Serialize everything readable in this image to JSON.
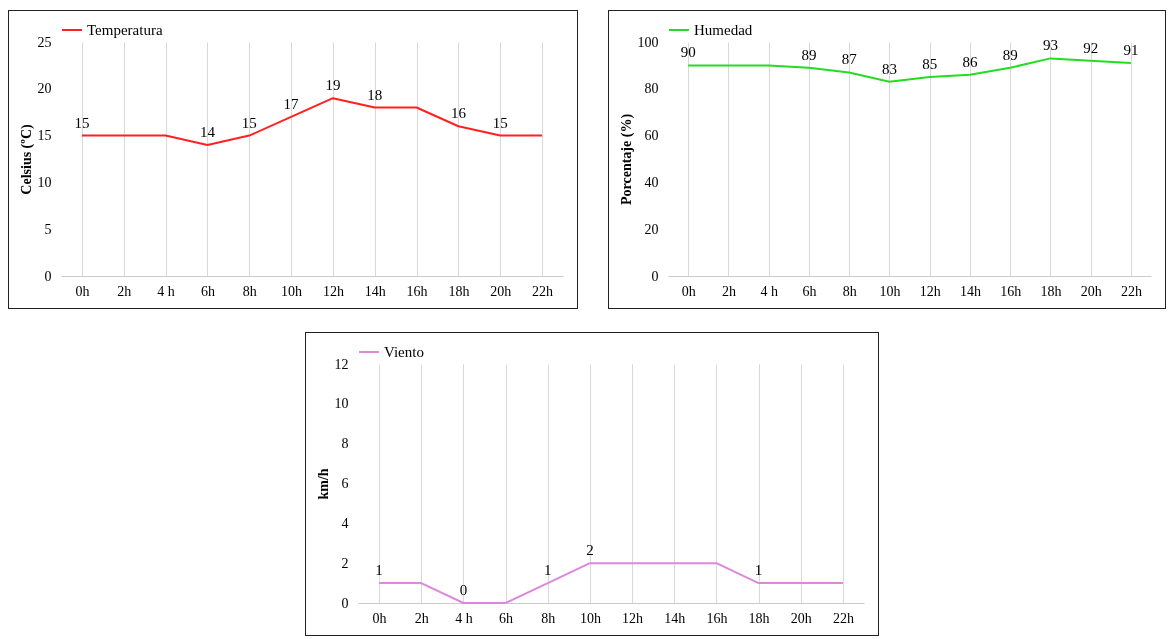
{
  "chart_data": [
    {
      "type": "line",
      "ylabel": "Celsius (ºC)",
      "categories": [
        "0h",
        "2h",
        "4 h",
        "6h",
        "8h",
        "10h",
        "12h",
        "14h",
        "16h",
        "18h",
        "20h",
        "22h"
      ],
      "series": [
        {
          "name": "Temperatura",
          "color": "#ff2020",
          "values": [
            15,
            15,
            15,
            14,
            15,
            17,
            19,
            18,
            18,
            16,
            15,
            15
          ],
          "value_labels": [
            "15",
            null,
            null,
            "14",
            "15",
            "17",
            "19",
            "18",
            null,
            "16",
            "15",
            null
          ]
        }
      ],
      "ylim": [
        0,
        25
      ],
      "yticks": [
        0,
        5,
        10,
        15,
        20,
        25
      ],
      "grid": "x",
      "legend": "top"
    },
    {
      "type": "line",
      "ylabel": "Porcentaje (%)",
      "categories": [
        "0h",
        "2h",
        "4 h",
        "6h",
        "8h",
        "10h",
        "12h",
        "14h",
        "16h",
        "18h",
        "20h",
        "22h"
      ],
      "series": [
        {
          "name": "Humedad",
          "color": "#22dd22",
          "values": [
            90,
            90,
            90,
            89,
            87,
            83,
            85,
            86,
            89,
            93,
            92,
            91
          ],
          "value_labels": [
            "90",
            null,
            null,
            "89",
            "87",
            "83",
            "85",
            "86",
            "89",
            "93",
            "92",
            "91"
          ]
        }
      ],
      "ylim": [
        0,
        100
      ],
      "yticks": [
        0,
        20,
        40,
        60,
        80,
        100
      ],
      "grid": "x",
      "legend": "top"
    },
    {
      "type": "line",
      "ylabel": "km/h",
      "categories": [
        "0h",
        "2h",
        "4 h",
        "6h",
        "8h",
        "10h",
        "12h",
        "14h",
        "16h",
        "18h",
        "20h",
        "22h"
      ],
      "series": [
        {
          "name": "Viento",
          "color": "#dd88dd",
          "values": [
            1,
            1,
            0,
            0,
            1,
            2,
            2,
            2,
            2,
            1,
            1,
            1
          ],
          "value_labels": [
            "1",
            null,
            "0",
            null,
            "1",
            "2",
            null,
            null,
            null,
            "1",
            null,
            null
          ]
        }
      ],
      "ylim": [
        0,
        12
      ],
      "yticks": [
        0,
        2,
        4,
        6,
        8,
        10,
        12
      ],
      "grid": "x",
      "legend": "top"
    }
  ]
}
